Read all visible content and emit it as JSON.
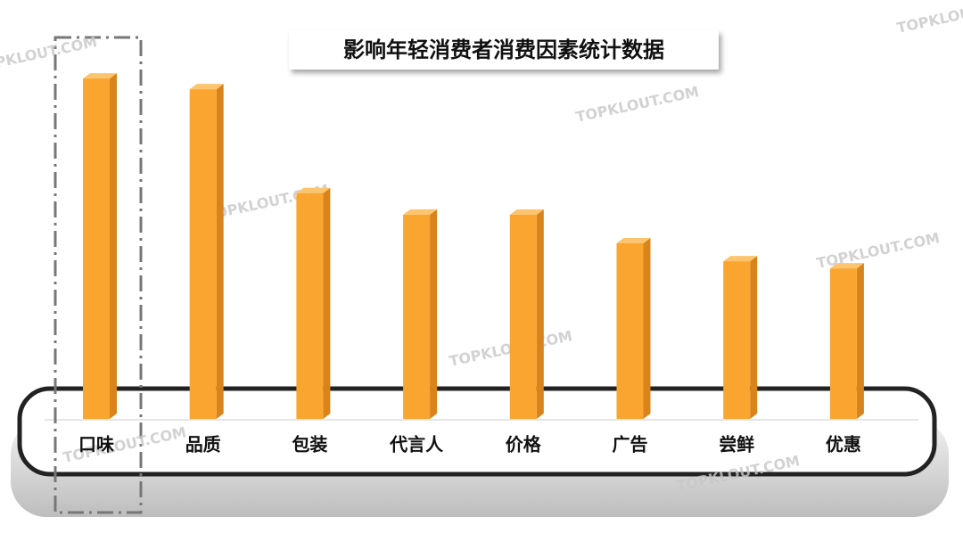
{
  "chart_data": {
    "type": "bar",
    "title": "影响年轻消费者消费因素统计数据",
    "categories": [
      "口味",
      "品质",
      "包装",
      "代言人",
      "价格",
      "广告",
      "尝鲜",
      "优惠"
    ],
    "values": [
      95,
      92,
      63,
      57,
      57,
      49,
      44,
      42
    ],
    "color": "#f9a52f",
    "ylim": [
      0,
      100
    ],
    "watermark": "TOPKLOUT.COM"
  }
}
